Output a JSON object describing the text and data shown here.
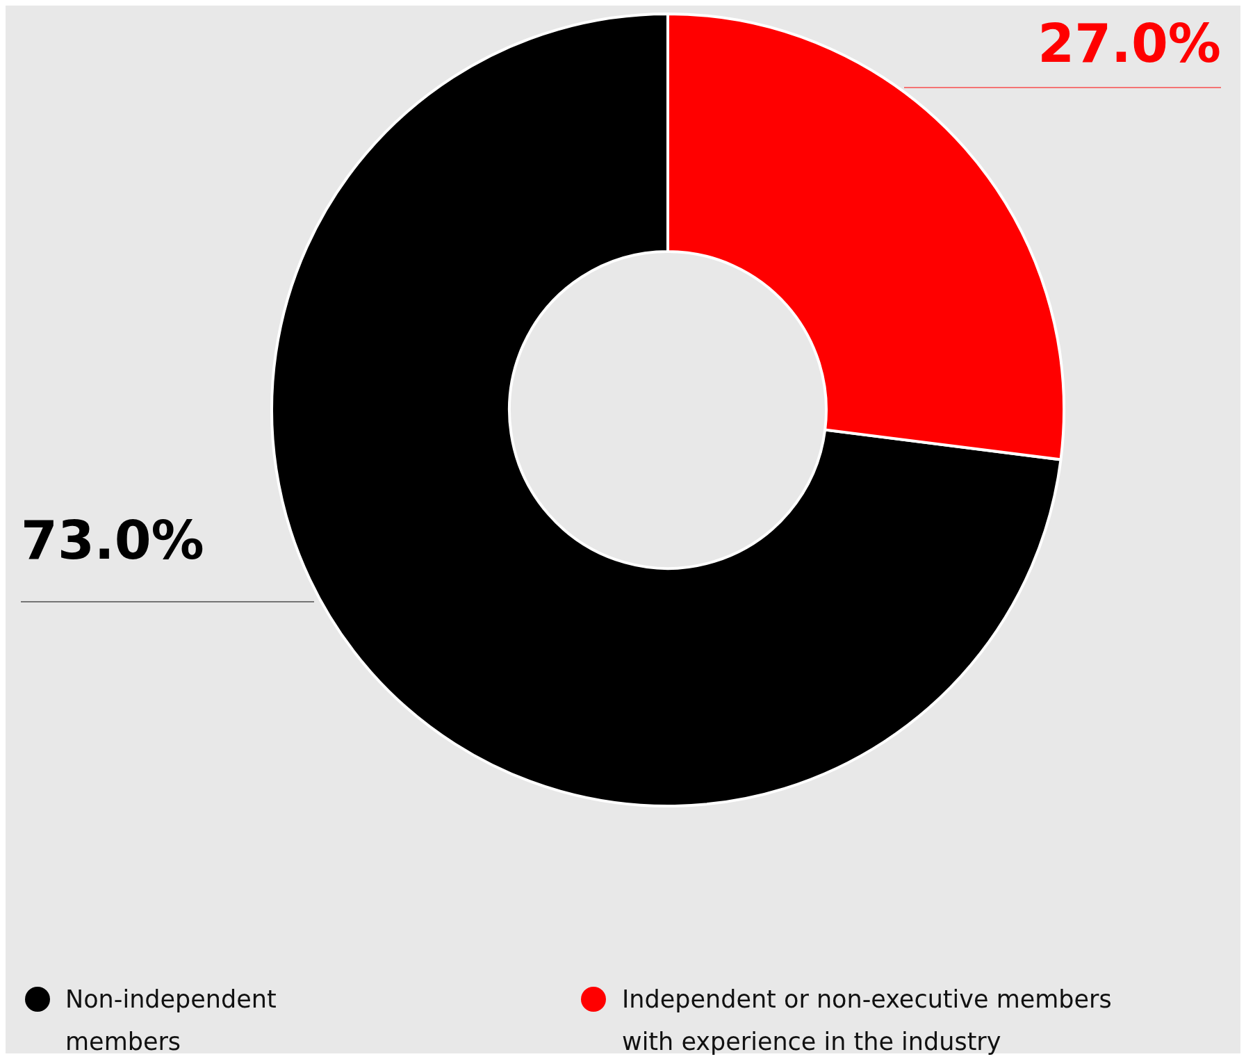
{
  "chart_data": {
    "type": "donut",
    "categories": [
      "Non-independent members",
      "Independent or non-executive members with experience in the industry"
    ],
    "values": [
      73,
      27
    ],
    "colors": [
      "#000000",
      "#ff0000"
    ],
    "value_labels": [
      "73.0%",
      "27.0%"
    ],
    "legend": "bottom"
  }
}
